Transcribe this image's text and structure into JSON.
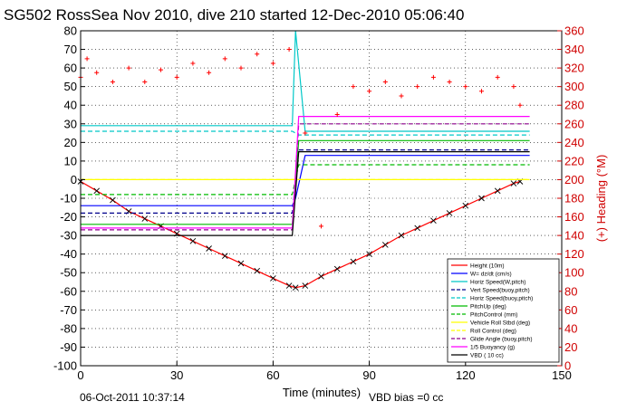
{
  "chart_data": {
    "type": "line",
    "title": "SG502 RossSea Nov 2010, dive 210 started 12-Dec-2010 05:06:40",
    "xlabel": "Time (minutes)",
    "ylabel_right": "(+) Heading (°M)",
    "xlim": [
      0,
      150
    ],
    "ylim": [
      -100,
      80
    ],
    "ylim_right": [
      0,
      360
    ],
    "x_ticks": [
      "0",
      "30",
      "60",
      "90",
      "120",
      "150"
    ],
    "y_ticks": [
      "80",
      "70",
      "60",
      "50",
      "40",
      "30",
      "20",
      "10",
      "0",
      "-10",
      "-20",
      "-30",
      "-40",
      "-50",
      "-60",
      "-70",
      "-80",
      "-90",
      "-100"
    ],
    "y_right_ticks": [
      "360",
      "340",
      "320",
      "300",
      "280",
      "260",
      "240",
      "220",
      "200",
      "180",
      "160",
      "140",
      "120",
      "100",
      "80",
      "60",
      "40",
      "20",
      "0"
    ],
    "grid": true,
    "legend_position": "bottom-right",
    "footer_left": "06-Oct-2011 10:37:14",
    "footer_right": "VBD bias =0 cc",
    "series": [
      {
        "name": "Height (10m)",
        "color": "#ff0000",
        "style": "solid",
        "marker": "x",
        "x": [
          0,
          5,
          10,
          15,
          20,
          25,
          30,
          35,
          40,
          45,
          50,
          55,
          60,
          65,
          67,
          70,
          75,
          80,
          85,
          90,
          95,
          100,
          105,
          110,
          115,
          120,
          125,
          130,
          135,
          137
        ],
        "values": [
          -1,
          -6,
          -11,
          -17,
          -21,
          -25,
          -29,
          -33,
          -37,
          -41,
          -45,
          -49,
          -53,
          -57,
          -58,
          -57,
          -52,
          -48,
          -44,
          -40,
          -35,
          -30,
          -26,
          -22,
          -18,
          -14,
          -10,
          -6,
          -2,
          -1
        ]
      },
      {
        "name": "W= dz/dt (cm/s)",
        "color": "#0000ff",
        "style": "solid",
        "x": [
          0,
          66,
          67,
          70,
          140
        ],
        "values": [
          -14,
          -14,
          -10,
          13,
          13
        ]
      },
      {
        "name": "Horiz Speed(W,pitch)",
        "color": "#00c8c8",
        "style": "solid",
        "x": [
          0,
          66,
          67,
          70,
          140
        ],
        "values": [
          29,
          29,
          80,
          26,
          26
        ]
      },
      {
        "name": "Vert Speed(buoy,pitch)",
        "color": "#00008b",
        "style": "dashed",
        "x": [
          0,
          66,
          68,
          140
        ],
        "values": [
          -18,
          -18,
          16,
          16
        ]
      },
      {
        "name": "Horiz Speed(buoy,pitch)",
        "color": "#00c8c8",
        "style": "dashed",
        "x": [
          0,
          66,
          68,
          140
        ],
        "values": [
          26,
          26,
          24,
          24
        ]
      },
      {
        "name": "PitchUp (deg)",
        "color": "#00bb00",
        "style": "solid",
        "x": [
          0,
          66,
          68,
          140
        ],
        "values": [
          -24,
          -24,
          21,
          21
        ]
      },
      {
        "name": "PitchControl (mm)",
        "color": "#00bb00",
        "style": "dashed",
        "x": [
          0,
          66,
          68,
          140
        ],
        "values": [
          -8,
          -8,
          8,
          8
        ]
      },
      {
        "name": "Vehicle Roll Stbd (deg)",
        "color": "#ffff00",
        "style": "solid",
        "x": [
          0,
          66,
          70,
          140
        ],
        "values": [
          0,
          0,
          0,
          0
        ]
      },
      {
        "name": "Roll Control (deg)",
        "color": "#ffff00",
        "style": "dashed",
        "x": [
          0,
          140
        ],
        "values": [
          0,
          0
        ]
      },
      {
        "name": "Glide Angle (buoy,pitch)",
        "color": "#8b008b",
        "style": "dashed",
        "x": [
          0,
          66,
          68,
          140
        ],
        "values": [
          -27,
          -27,
          30,
          30
        ]
      },
      {
        "name": "1/5 Buoyancy (g)",
        "color": "#ff00ff",
        "style": "solid",
        "x": [
          0,
          66,
          68,
          140
        ],
        "values": [
          -26,
          -26,
          34,
          34
        ]
      },
      {
        "name": "VBD ( 10 cc)",
        "color": "#000000",
        "style": "solid",
        "x": [
          0,
          66,
          68,
          140
        ],
        "values": [
          -30,
          -30,
          15,
          15
        ]
      }
    ],
    "heading_series": {
      "name": "Heading",
      "color": "#ff0000",
      "marker": "+",
      "x": [
        0,
        2,
        5,
        10,
        15,
        20,
        25,
        30,
        35,
        40,
        45,
        50,
        55,
        60,
        65,
        70,
        75,
        80,
        85,
        90,
        95,
        100,
        105,
        110,
        115,
        120,
        125,
        130,
        135,
        137
      ],
      "values": [
        310,
        330,
        315,
        305,
        320,
        305,
        318,
        310,
        325,
        315,
        330,
        320,
        335,
        325,
        340,
        250,
        150,
        270,
        300,
        295,
        305,
        290,
        300,
        310,
        305,
        300,
        295,
        310,
        300,
        280
      ]
    }
  }
}
